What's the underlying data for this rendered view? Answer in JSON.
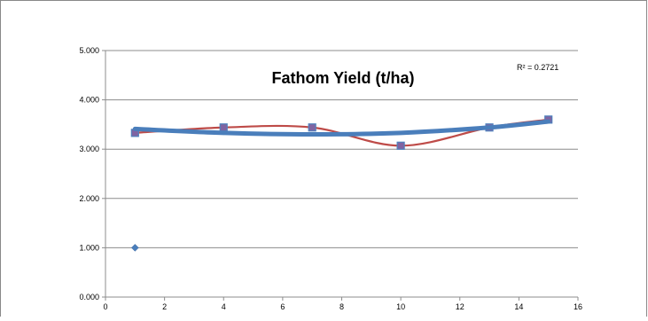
{
  "chart_data": {
    "type": "scatter",
    "title": "Fathom Yield (t/ha)",
    "annotation": "R² = 0.2721",
    "xlim": [
      0,
      16
    ],
    "ylim": [
      0,
      5
    ],
    "x_ticks": [
      0,
      2,
      4,
      6,
      8,
      10,
      12,
      14,
      16
    ],
    "y_ticks": [
      0,
      1,
      2,
      3,
      4,
      5
    ],
    "x_tick_labels": [
      "0",
      "2",
      "4",
      "6",
      "8",
      "10",
      "12",
      "14",
      "16"
    ],
    "y_tick_labels": [
      "0.000",
      "1.000",
      "2.000",
      "3.000",
      "4.000",
      "5.000"
    ],
    "grid": "horizontal",
    "legend": "none",
    "series": [
      {
        "kind": "points",
        "marker": "diamond",
        "color": "#4a7ebb",
        "x": [
          1
        ],
        "y": [
          1.0
        ]
      },
      {
        "kind": "smooth-line-with-square-markers",
        "line_color": "#be4b48",
        "marker_fill": "#8064a2",
        "marker_stroke": "#4f81bd",
        "x": [
          1,
          4,
          7,
          10,
          13,
          15
        ],
        "y": [
          3.33,
          3.44,
          3.44,
          3.07,
          3.44,
          3.6
        ]
      },
      {
        "kind": "polynomial-trendline",
        "color": "#4a7ebb",
        "x": [
          1,
          4,
          7,
          10,
          13,
          15
        ],
        "y": [
          3.41,
          3.33,
          3.3,
          3.33,
          3.44,
          3.56
        ]
      }
    ]
  }
}
